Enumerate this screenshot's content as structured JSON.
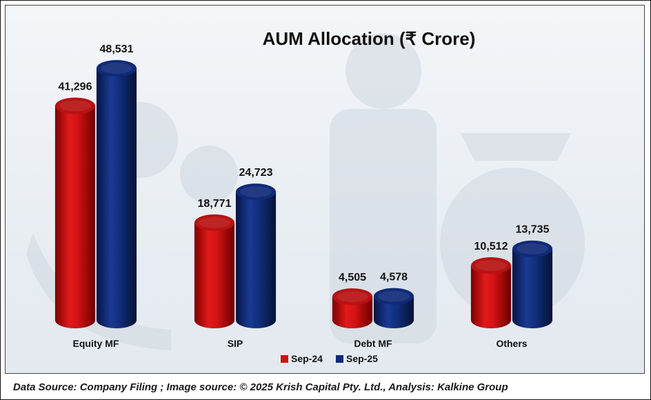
{
  "chart_data": {
    "type": "bar",
    "title": "AUM Allocation (₹ Crore)",
    "categories": [
      "Equity MF",
      "SIP",
      "Debt MF",
      "Others"
    ],
    "series": [
      {
        "name": "Sep-24",
        "color": "#cc1111",
        "values": [
          41296,
          18771,
          4505,
          10512
        ],
        "labels": [
          "41,296",
          "18,771",
          "4,505",
          "10,512"
        ]
      },
      {
        "name": "Sep-25",
        "color": "#0d2a7a",
        "values": [
          48531,
          24723,
          4578,
          13735
        ],
        "labels": [
          "48,531",
          "24,723",
          "4,578",
          "13,735"
        ]
      }
    ],
    "xlabel": "",
    "ylabel": "",
    "ylim": [
      0,
      50000
    ],
    "grid": false,
    "legend": "bottom",
    "style": "3d-cylinder"
  },
  "footer": {
    "text": "Data Source: Company Filing ; Image source: © 2025 Krish Capital Pty. Ltd., Analysis: Kalkine Group"
  }
}
